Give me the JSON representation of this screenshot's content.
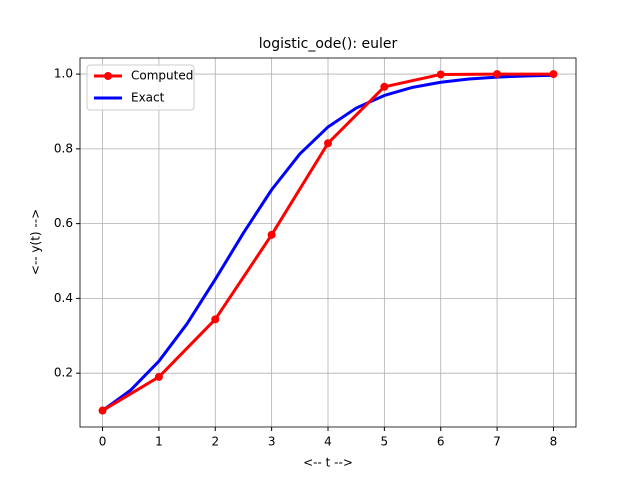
{
  "chart_data": {
    "type": "line",
    "title": "logistic_ode(): euler",
    "x_label": "<-- t -->",
    "y_label": "<-- y(t) -->",
    "series": [
      {
        "name": "Computed",
        "color": "#ff0000",
        "markers": true,
        "x": [
          0,
          1,
          2,
          3,
          4,
          5,
          6,
          7,
          8
        ],
        "values": [
          0.1,
          0.19,
          0.344,
          0.57,
          0.815,
          0.966,
          0.999,
          1.0,
          1.0
        ]
      },
      {
        "name": "Exact",
        "color": "#0000ff",
        "markers": false,
        "x": [
          0,
          0.5,
          1,
          1.5,
          2,
          2.5,
          3,
          3.5,
          4,
          4.5,
          5,
          5.5,
          6,
          6.5,
          7,
          7.5,
          8
        ],
        "values": [
          0.1,
          0.1548,
          0.232,
          0.3324,
          0.4509,
          0.5751,
          0.6906,
          0.7863,
          0.8585,
          0.9091,
          0.9428,
          0.9645,
          0.9782,
          0.9867,
          0.9919,
          0.995,
          0.997
        ]
      }
    ],
    "xlim": [
      -0.4,
      8.4
    ],
    "xticks": [
      0,
      1,
      2,
      3,
      4,
      5,
      6,
      7,
      8
    ],
    "ylim": [
      0.056,
      1.043
    ],
    "yticks": [
      0.2,
      0.4,
      0.6,
      0.8,
      {
        "value": 1,
        "label": "1.0"
      }
    ],
    "grid": true,
    "legend": "upper-left"
  }
}
